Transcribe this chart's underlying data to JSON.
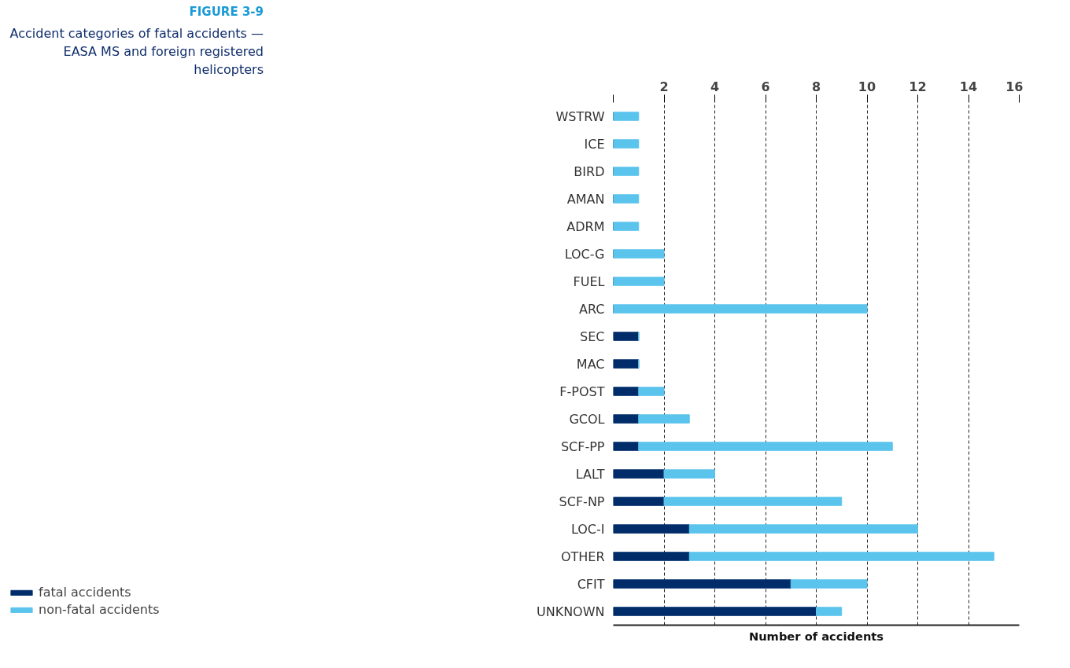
{
  "chart_data": {
    "type": "bar",
    "orientation": "horizontal",
    "stacked": true,
    "title": "FIGURE 3-9",
    "subtitle": "Accident categories of fatal accidents — EASA MS and foreign registered helicopters",
    "xlabel": "Number of accidents",
    "categories": [
      "WSTRW",
      "ICE",
      "BIRD",
      "AMAN",
      "ADRM",
      "LOC-G",
      "FUEL",
      "ARC",
      "SEC",
      "MAC",
      "F-POST",
      "GCOL",
      "SCF-PP",
      "LALT",
      "SCF-NP",
      "LOC-I",
      "OTHER",
      "CFIT",
      "UNKNOWN"
    ],
    "series": [
      {
        "name": "fatal accidents",
        "color": "#002d6a",
        "values": [
          0,
          0,
          0,
          0,
          0,
          0,
          0,
          0,
          1,
          1,
          1,
          1,
          1,
          2,
          2,
          3,
          3,
          7,
          8
        ]
      },
      {
        "name": "non-fatal accidents",
        "color": "#5bc4ed",
        "values": [
          1,
          1,
          1,
          1,
          1,
          2,
          2,
          10,
          0,
          0,
          1,
          2,
          10,
          2,
          7,
          9,
          12,
          3,
          1
        ]
      }
    ],
    "xlim": [
      0,
      16
    ],
    "xticks": [
      {
        "value": 0,
        "label": null
      },
      2,
      4,
      6,
      8,
      10,
      12,
      14,
      16
    ],
    "grid": "x",
    "legend": "bottom left"
  }
}
